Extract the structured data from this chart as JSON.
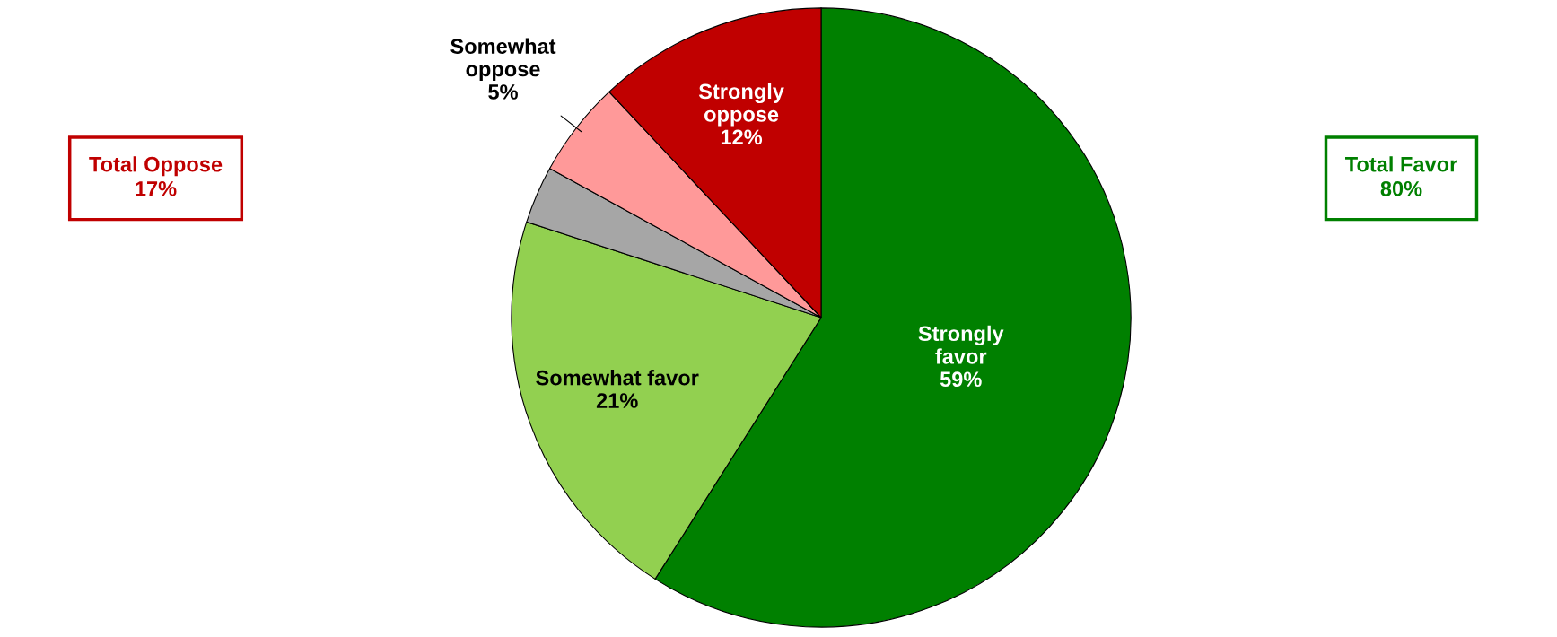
{
  "chart_data": {
    "type": "pie",
    "categories": [
      "Strongly\nfavor",
      "Somewhat favor",
      null,
      "Somewhat\noppose",
      "Strongly\noppose"
    ],
    "values": [
      59,
      21,
      3,
      5,
      12
    ],
    "colors": [
      "#008000",
      "#92d050",
      "#a6a6a6",
      "#ff9999",
      "#c00000"
    ],
    "value_labels": [
      "59%",
      "21%",
      null,
      "5%",
      "12%"
    ],
    "annotations": [
      "Total Oppose\n17%",
      "Total Favor\n80%"
    ],
    "legend": false
  }
}
